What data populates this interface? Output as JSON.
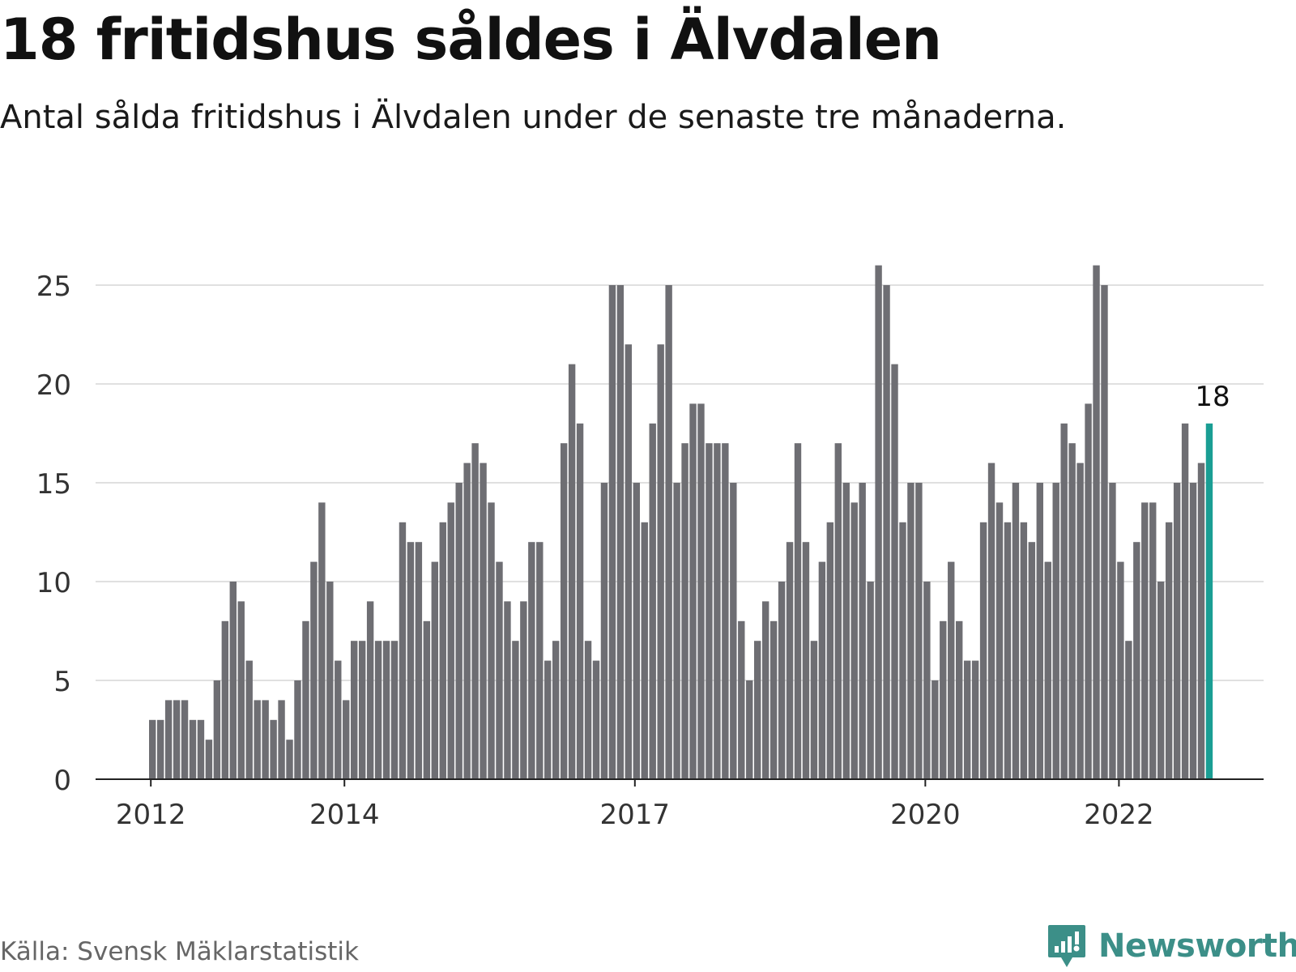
{
  "header": {
    "title": "18 fritidshus såldes i Älvdalen",
    "subtitle": "Antal sålda fritidshus i Älvdalen under de senaste tre månaderna."
  },
  "footer": {
    "source": "Källa: Svensk Mäklarstatistik",
    "brand": "Newsworthy"
  },
  "colors": {
    "bar": "#6e6e73",
    "highlight": "#1a9e94",
    "grid": "#e0e0e0",
    "axis": "#222222",
    "brand": "#3c8f88"
  },
  "chart_data": {
    "type": "bar",
    "title": "18 fritidshus såldes i Älvdalen",
    "subtitle": "Antal sålda fritidshus i Älvdalen under de senaste tre månaderna.",
    "xlabel": "",
    "ylabel": "",
    "ylim": [
      0,
      26
    ],
    "yticks": [
      0,
      5,
      10,
      15,
      20,
      25
    ],
    "xtick_labels": [
      "2012",
      "2014",
      "2017",
      "2020",
      "2022"
    ],
    "xtick_bar_index": [
      0,
      24,
      60,
      96,
      120
    ],
    "grid": true,
    "highlight": {
      "index": 131,
      "label": "18"
    },
    "values": [
      3,
      3,
      4,
      4,
      4,
      3,
      3,
      2,
      5,
      8,
      10,
      9,
      6,
      4,
      4,
      3,
      4,
      2,
      5,
      8,
      11,
      14,
      10,
      6,
      4,
      7,
      7,
      9,
      7,
      7,
      7,
      13,
      12,
      12,
      8,
      11,
      13,
      14,
      15,
      16,
      17,
      16,
      14,
      11,
      9,
      7,
      9,
      12,
      12,
      6,
      7,
      17,
      21,
      18,
      7,
      6,
      15,
      25,
      25,
      22,
      15,
      13,
      18,
      22,
      25,
      15,
      17,
      19,
      19,
      17,
      17,
      17,
      15,
      8,
      5,
      7,
      9,
      8,
      10,
      12,
      17,
      12,
      7,
      11,
      13,
      17,
      15,
      14,
      15,
      10,
      26,
      25,
      21,
      13,
      15,
      15,
      10,
      5,
      8,
      11,
      8,
      6,
      6,
      13,
      16,
      14,
      13,
      15,
      13,
      12,
      15,
      11,
      15,
      18,
      17,
      16,
      19,
      26,
      25,
      15,
      11,
      7,
      12,
      14,
      14,
      10,
      13,
      15,
      18,
      15,
      16,
      18
    ]
  }
}
